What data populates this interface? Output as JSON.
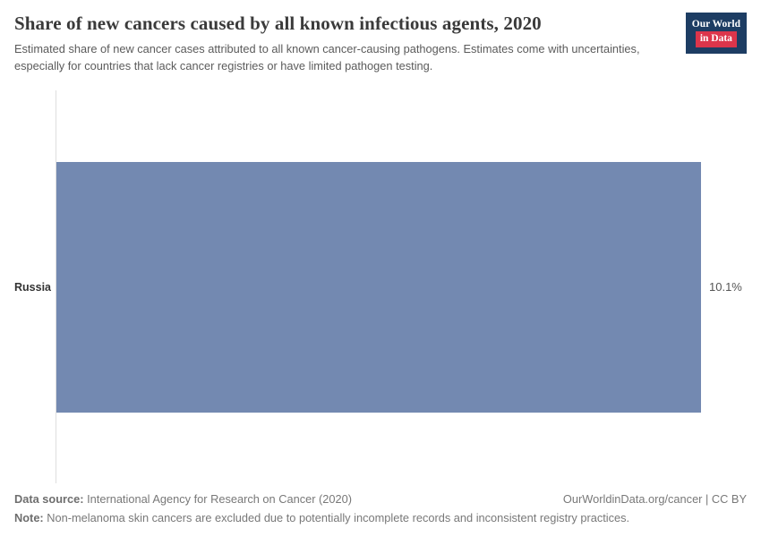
{
  "header": {
    "title": "Share of new cancers caused by all known infectious agents, 2020",
    "subtitle": "Estimated share of new cancer cases attributed to all known cancer-causing pathogens. Estimates come with uncertainties, especially for countries that lack cancer registries or have limited pathogen testing."
  },
  "logo": {
    "line1": "Our World",
    "line2": "in Data",
    "bg_color": "#1d3d63",
    "accent_color": "#dc354b"
  },
  "chart_data": {
    "type": "bar",
    "orientation": "horizontal",
    "categories": [
      "Russia"
    ],
    "values": [
      10.1
    ],
    "value_labels": [
      "10.1%"
    ],
    "title": "Share of new cancers caused by all known infectious agents, 2020",
    "xlabel": "",
    "ylabel": "",
    "xlim": [
      0,
      10.1
    ],
    "bar_color": "#7389b1",
    "grid": false,
    "legend": false
  },
  "footer": {
    "data_source_label": "Data source:",
    "data_source": "International Agency for Research on Cancer (2020)",
    "attribution": "OurWorldinData.org/cancer | CC BY",
    "note_label": "Note:",
    "note": "Non-melanoma skin cancers are excluded due to potentially incomplete records and inconsistent registry practices."
  }
}
